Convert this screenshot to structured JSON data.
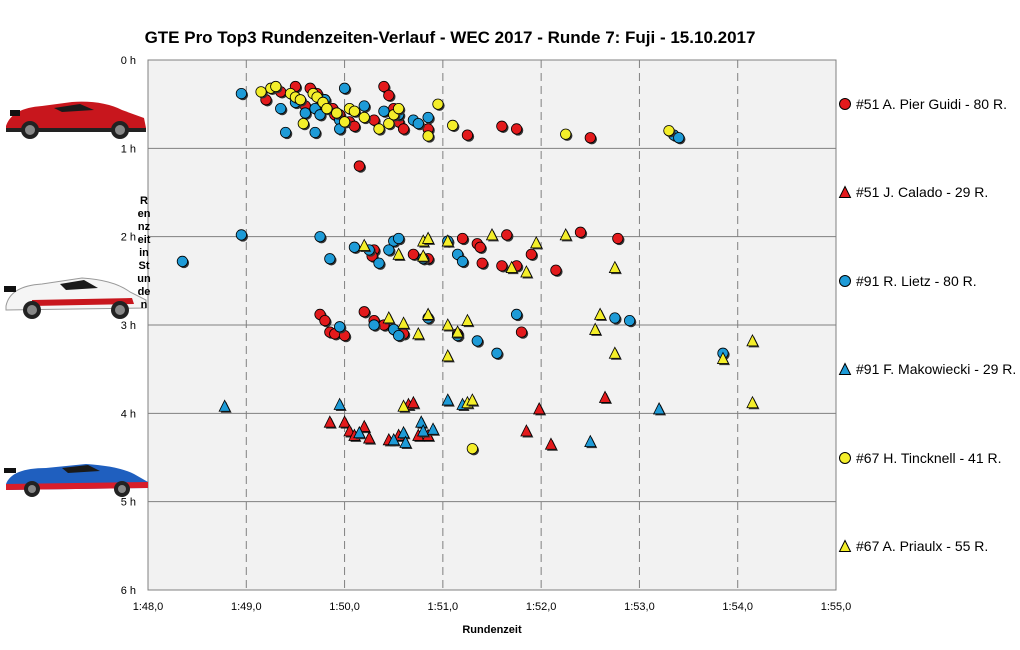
{
  "chart_data": {
    "type": "scatter",
    "title": "GTE Pro Top3 Rundenzeiten-Verlauf  - WEC 2017  - Runde 7: Fuji  - 15.10.2017",
    "xlabel": "Rundenzeit",
    "ylabel": "Rennzeit in Stunden",
    "xlim": [
      108.0,
      115.0
    ],
    "ylim": [
      0,
      6
    ],
    "x_ticks": [
      "1:48,0",
      "1:49,0",
      "1:50,0",
      "1:51,0",
      "1:52,0",
      "1:53,0",
      "1:54,0",
      "1:55,0"
    ],
    "y_ticks": [
      "0 h",
      "1 h",
      "2 h",
      "3 h",
      "4 h",
      "5 h",
      "6 h"
    ],
    "grid": true,
    "legend_position": "right",
    "series": [
      {
        "name": "#51 A. Pier Guidi - 80 R.",
        "marker": "circle",
        "color": "#e31a1c",
        "points": [
          [
            109.2,
            0.45
          ],
          [
            109.35,
            0.36
          ],
          [
            109.5,
            0.3
          ],
          [
            109.65,
            0.32
          ],
          [
            109.72,
            0.38
          ],
          [
            109.8,
            0.45
          ],
          [
            109.88,
            0.55
          ],
          [
            109.95,
            0.62
          ],
          [
            110.05,
            0.7
          ],
          [
            110.1,
            0.75
          ],
          [
            110.4,
            0.3
          ],
          [
            110.45,
            0.4
          ],
          [
            110.5,
            0.55
          ],
          [
            110.55,
            0.7
          ],
          [
            110.6,
            0.78
          ],
          [
            110.85,
            0.78
          ],
          [
            111.25,
            0.85
          ],
          [
            111.6,
            0.75
          ],
          [
            111.75,
            0.78
          ],
          [
            112.5,
            0.88
          ],
          [
            109.6,
            0.52
          ],
          [
            109.9,
            0.62
          ],
          [
            110.3,
            0.68
          ],
          [
            110.15,
            1.2
          ],
          [
            110.3,
            2.15
          ],
          [
            110.28,
            2.22
          ],
          [
            110.7,
            2.2
          ],
          [
            110.85,
            2.25
          ],
          [
            111.2,
            2.02
          ],
          [
            111.35,
            2.08
          ],
          [
            111.38,
            2.12
          ],
          [
            111.65,
            1.98
          ],
          [
            111.4,
            2.3
          ],
          [
            111.6,
            2.33
          ],
          [
            111.75,
            2.33
          ],
          [
            111.9,
            2.2
          ],
          [
            112.15,
            2.38
          ],
          [
            112.4,
            1.95
          ],
          [
            112.78,
            2.02
          ],
          [
            109.75,
            2.88
          ],
          [
            109.8,
            2.95
          ],
          [
            109.85,
            3.08
          ],
          [
            109.9,
            3.1
          ],
          [
            110.0,
            3.12
          ],
          [
            110.2,
            2.85
          ],
          [
            110.3,
            2.95
          ],
          [
            110.4,
            3.0
          ],
          [
            110.5,
            3.05
          ],
          [
            110.6,
            3.1
          ],
          [
            111.8,
            3.08
          ],
          [
            111.15,
            3.1
          ]
        ]
      },
      {
        "name": "#51 J. Calado - 29 R.",
        "marker": "triangle",
        "color": "#e31a1c",
        "points": [
          [
            109.85,
            4.1
          ],
          [
            110.0,
            4.1
          ],
          [
            110.05,
            4.2
          ],
          [
            110.1,
            4.25
          ],
          [
            110.2,
            4.15
          ],
          [
            110.25,
            4.28
          ],
          [
            110.45,
            4.3
          ],
          [
            110.55,
            4.25
          ],
          [
            110.65,
            3.9
          ],
          [
            110.7,
            3.88
          ],
          [
            110.75,
            4.25
          ],
          [
            110.85,
            4.25
          ],
          [
            111.85,
            4.2
          ],
          [
            111.98,
            3.95
          ],
          [
            112.1,
            4.35
          ],
          [
            112.65,
            3.82
          ]
        ]
      },
      {
        "name": "#91 R. Lietz - 80 R.",
        "marker": "circle",
        "color": "#1e9bd7",
        "points": [
          [
            108.95,
            0.38
          ],
          [
            109.35,
            0.55
          ],
          [
            109.5,
            0.48
          ],
          [
            109.6,
            0.6
          ],
          [
            109.7,
            0.55
          ],
          [
            109.75,
            0.62
          ],
          [
            109.8,
            0.45
          ],
          [
            109.95,
            0.68
          ],
          [
            110.0,
            0.32
          ],
          [
            110.2,
            0.52
          ],
          [
            110.4,
            0.58
          ],
          [
            110.55,
            0.62
          ],
          [
            110.7,
            0.68
          ],
          [
            110.75,
            0.72
          ],
          [
            110.85,
            0.65
          ],
          [
            109.4,
            0.82
          ],
          [
            109.7,
            0.82
          ],
          [
            109.95,
            0.78
          ],
          [
            113.35,
            0.85
          ],
          [
            113.4,
            0.88
          ],
          [
            108.35,
            2.28
          ],
          [
            108.95,
            1.98
          ],
          [
            109.75,
            2.0
          ],
          [
            109.85,
            2.25
          ],
          [
            110.1,
            2.12
          ],
          [
            110.25,
            2.15
          ],
          [
            110.35,
            2.3
          ],
          [
            110.5,
            2.05
          ],
          [
            110.55,
            2.02
          ],
          [
            110.45,
            2.15
          ],
          [
            110.8,
            2.25
          ],
          [
            111.05,
            2.05
          ],
          [
            111.15,
            2.2
          ],
          [
            111.2,
            2.28
          ],
          [
            110.5,
            3.05
          ],
          [
            110.55,
            3.12
          ],
          [
            110.3,
            3.0
          ],
          [
            110.85,
            2.92
          ],
          [
            111.15,
            3.12
          ],
          [
            111.35,
            3.18
          ],
          [
            111.55,
            3.32
          ],
          [
            111.75,
            2.88
          ],
          [
            112.75,
            2.92
          ],
          [
            112.9,
            2.95
          ],
          [
            113.85,
            3.32
          ],
          [
            109.95,
            3.02
          ]
        ]
      },
      {
        "name": "#91 F. Makowiecki - 29 R.",
        "marker": "triangle",
        "color": "#1e9bd7",
        "points": [
          [
            108.78,
            3.92
          ],
          [
            109.95,
            3.9
          ],
          [
            110.15,
            4.22
          ],
          [
            110.5,
            4.3
          ],
          [
            110.6,
            4.22
          ],
          [
            110.62,
            4.33
          ],
          [
            110.78,
            4.1
          ],
          [
            110.8,
            4.2
          ],
          [
            110.9,
            4.18
          ],
          [
            111.05,
            3.85
          ],
          [
            111.2,
            3.9
          ],
          [
            112.5,
            4.32
          ],
          [
            113.2,
            3.95
          ]
        ]
      },
      {
        "name": "#67 H. Tincknell - 41 R.",
        "marker": "circle",
        "color": "#f4ee2a",
        "points": [
          [
            109.15,
            0.36
          ],
          [
            109.25,
            0.32
          ],
          [
            109.3,
            0.3
          ],
          [
            109.45,
            0.38
          ],
          [
            109.5,
            0.42
          ],
          [
            109.55,
            0.45
          ],
          [
            109.68,
            0.38
          ],
          [
            109.72,
            0.42
          ],
          [
            109.78,
            0.48
          ],
          [
            109.82,
            0.55
          ],
          [
            109.92,
            0.6
          ],
          [
            110.05,
            0.55
          ],
          [
            110.1,
            0.58
          ],
          [
            110.2,
            0.65
          ],
          [
            110.35,
            0.78
          ],
          [
            110.45,
            0.72
          ],
          [
            110.5,
            0.62
          ],
          [
            110.55,
            0.55
          ],
          [
            110.95,
            0.5
          ],
          [
            111.1,
            0.74
          ],
          [
            112.25,
            0.84
          ],
          [
            113.3,
            0.8
          ],
          [
            109.58,
            0.72
          ],
          [
            110.0,
            0.7
          ],
          [
            110.85,
            0.86
          ],
          [
            111.3,
            4.4
          ]
        ]
      },
      {
        "name": "#67 A. Priaulx - 55 R.",
        "marker": "triangle",
        "color": "#f4ee2a",
        "points": [
          [
            110.2,
            2.1
          ],
          [
            110.55,
            2.2
          ],
          [
            110.8,
            2.05
          ],
          [
            110.85,
            2.02
          ],
          [
            110.8,
            2.22
          ],
          [
            111.05,
            2.05
          ],
          [
            111.5,
            1.98
          ],
          [
            111.7,
            2.35
          ],
          [
            111.85,
            2.4
          ],
          [
            111.95,
            2.07
          ],
          [
            112.25,
            1.98
          ],
          [
            112.75,
            2.35
          ],
          [
            110.45,
            2.92
          ],
          [
            110.6,
            2.98
          ],
          [
            110.75,
            3.1
          ],
          [
            110.85,
            2.88
          ],
          [
            111.05,
            3.0
          ],
          [
            111.15,
            3.08
          ],
          [
            111.25,
            2.95
          ],
          [
            111.05,
            3.35
          ],
          [
            112.55,
            3.05
          ],
          [
            112.6,
            2.88
          ],
          [
            112.75,
            3.32
          ],
          [
            113.85,
            3.38
          ],
          [
            114.15,
            3.18
          ],
          [
            114.15,
            3.88
          ],
          [
            110.6,
            3.92
          ],
          [
            111.25,
            3.88
          ],
          [
            111.3,
            3.85
          ]
        ]
      }
    ]
  }
}
